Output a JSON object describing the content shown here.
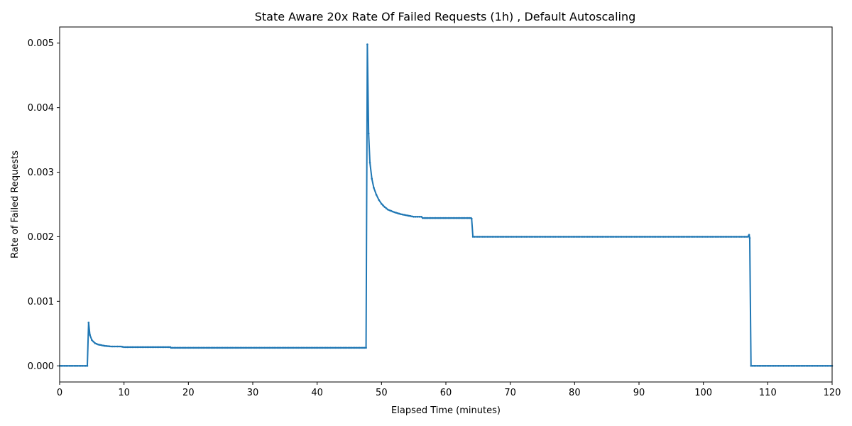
{
  "chart_data": {
    "type": "line",
    "title": "State Aware 20x Rate Of Failed Requests (1h) , Default Autoscaling",
    "xlabel": "Elapsed Time (minutes)",
    "ylabel": "Rate of Failed Requests",
    "xlim": [
      0,
      120
    ],
    "ylim": [
      -0.00025,
      0.00525
    ],
    "xticks": [
      0,
      10,
      20,
      30,
      40,
      50,
      60,
      70,
      80,
      90,
      100,
      110,
      120
    ],
    "xtick_labels": [
      "0",
      "10",
      "20",
      "30",
      "40",
      "50",
      "60",
      "70",
      "80",
      "90",
      "100",
      "110",
      "120"
    ],
    "yticks": [
      0,
      0.001,
      0.002,
      0.003,
      0.004,
      0.005
    ],
    "ytick_labels": [
      "0.000",
      "0.001",
      "0.002",
      "0.003",
      "0.004",
      "0.005"
    ],
    "grid": false,
    "legend": false,
    "line_color": "#1f77b4",
    "marker": "dot",
    "series": [
      {
        "x": [
          0,
          4.3,
          4.5,
          4.7,
          5.0,
          5.5,
          6.0,
          7.0,
          8.0,
          9.5,
          10,
          17.2,
          17.3,
          47.6,
          47.8,
          48.0,
          48.2,
          48.5,
          48.8,
          49.2,
          49.6,
          50.0,
          50.5,
          51.0,
          52.0,
          53.0,
          54.0,
          55.0,
          56.2,
          56.4,
          63.9,
          64.0,
          64.2,
          106.9,
          107.0,
          107.1,
          107.2,
          107.4,
          120
        ],
        "y": [
          0.0,
          0.0,
          0.00067,
          0.00048,
          0.0004,
          0.00035,
          0.00033,
          0.00031,
          0.0003,
          0.0003,
          0.00029,
          0.00029,
          0.00028,
          0.00028,
          0.00498,
          0.0036,
          0.00315,
          0.0029,
          0.00276,
          0.00265,
          0.00257,
          0.00251,
          0.00246,
          0.00242,
          0.00238,
          0.00235,
          0.00233,
          0.00231,
          0.00231,
          0.00229,
          0.00229,
          0.00228,
          0.002,
          0.002,
          0.00201,
          0.00203,
          0.00198,
          0.0,
          0.0
        ]
      }
    ]
  }
}
